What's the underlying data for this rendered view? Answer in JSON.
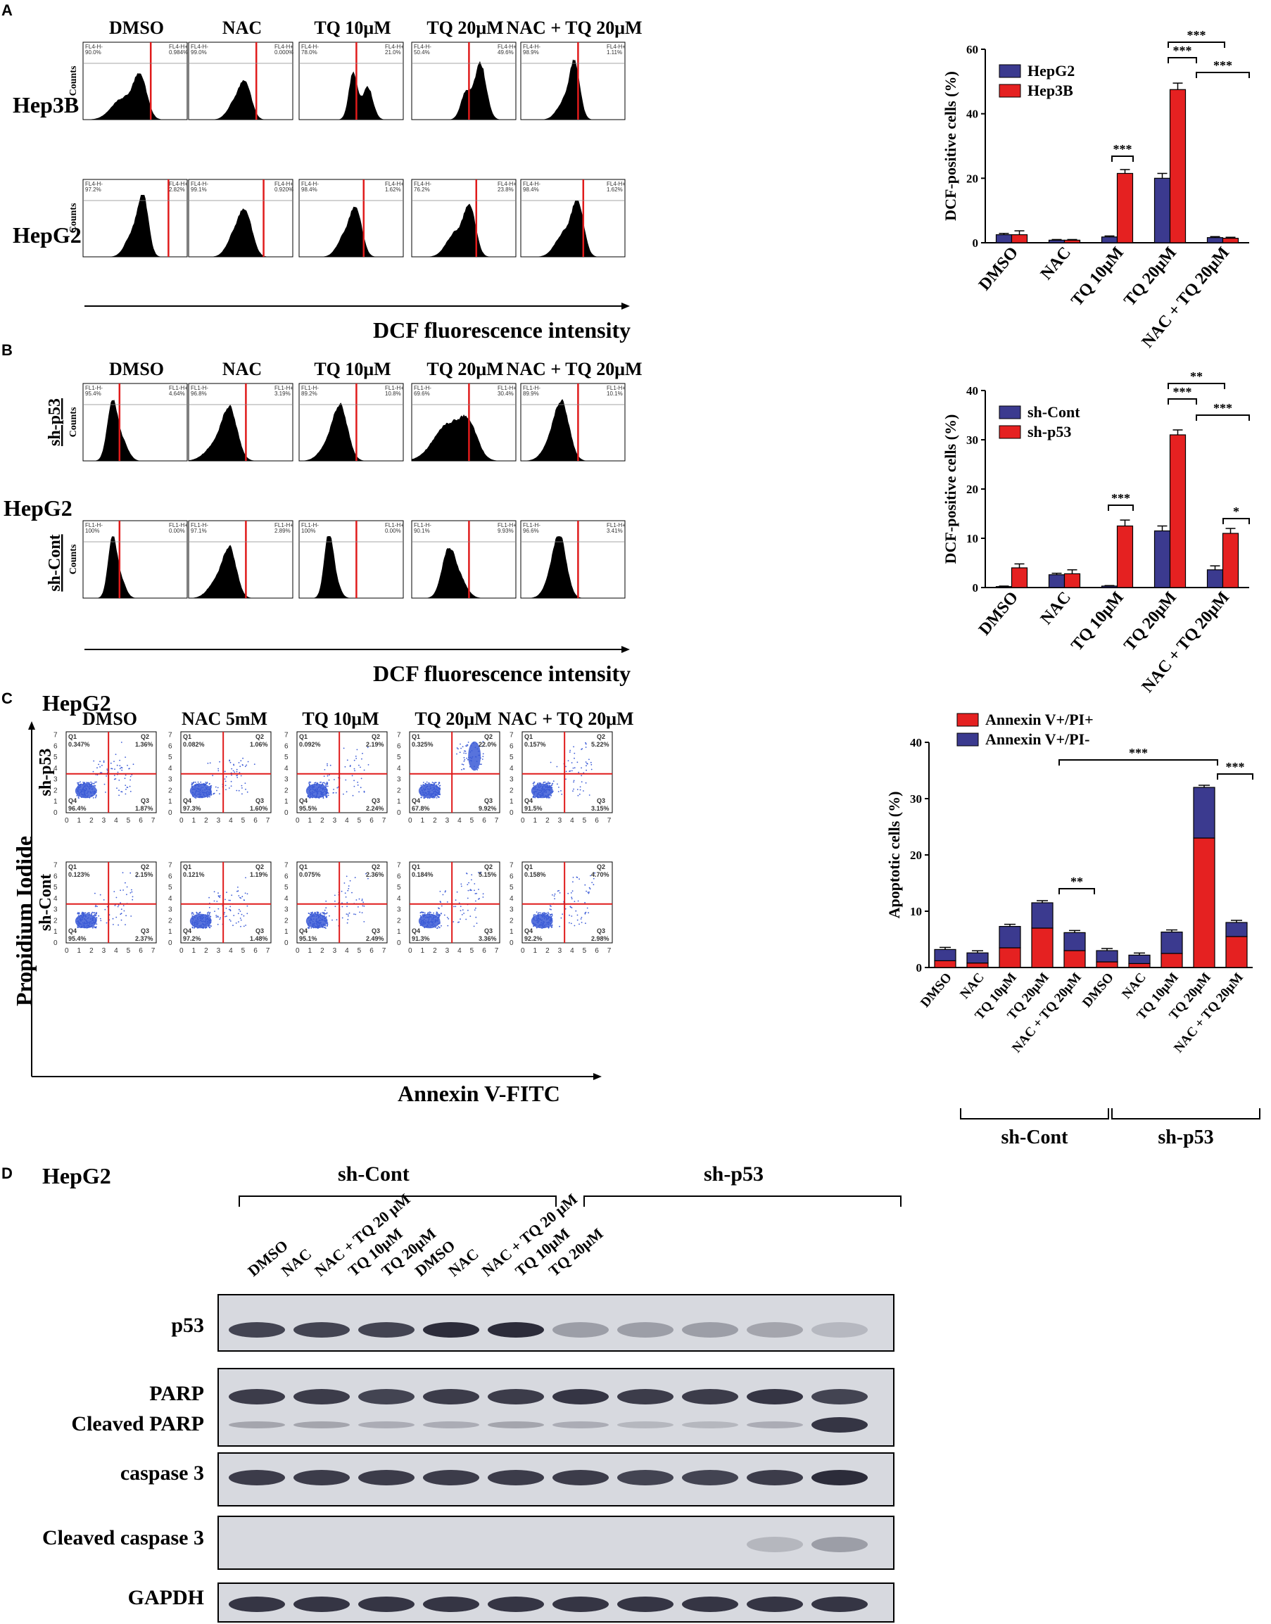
{
  "colors": {
    "red": "#e52121",
    "blue": "#3b3a8f",
    "black": "#000000",
    "gate": "#e01b1b",
    "dots": "#3b5bd6"
  },
  "panels": {
    "A": {
      "letter": "A",
      "columns": [
        "DMSO",
        "NAC",
        "TQ 10μM",
        "TQ 20μM",
        "NAC + TQ 20μM"
      ],
      "rows": [
        "Hep3B",
        "HepG2"
      ],
      "ylabel": "Counts",
      "xlabel": "DCF fluorescence intensity",
      "gates": [
        [
          [
            "90.0%",
            "0.984%"
          ],
          [
            "99.0%",
            "0.000%"
          ],
          [
            "78.0%",
            "21.0%"
          ],
          [
            "50.4%",
            "49.6%"
          ],
          [
            "98.9%",
            "1.11%"
          ]
        ],
        [
          [
            "97.2%",
            "2.82%"
          ],
          [
            "99.1%",
            "0.920%"
          ],
          [
            "98.4%",
            "1.62%"
          ],
          [
            "76.2%",
            "23.8%"
          ],
          [
            "98.4%",
            "1.62%"
          ]
        ]
      ],
      "gate_names": [
        "FL4-H-",
        "FL4-H+"
      ]
    },
    "B": {
      "letter": "B",
      "columns": [
        "DMSO",
        "NAC",
        "TQ 10μM",
        "TQ 20μM",
        "NAC + TQ 20μM"
      ],
      "rows": [
        "sh-p53",
        "sh-Cont"
      ],
      "cell": "HepG2",
      "ylabel": "Counts",
      "xlabel": "DCF fluorescence intensity",
      "gates": [
        [
          [
            "95.4%",
            "4.64%"
          ],
          [
            "96.8%",
            "3.19%"
          ],
          [
            "89.2%",
            "10.8%"
          ],
          [
            "69.6%",
            "30.4%"
          ],
          [
            "89.9%",
            "10.1%"
          ]
        ],
        [
          [
            "100%",
            "0.00%"
          ],
          [
            "97.1%",
            "2.89%"
          ],
          [
            "100%",
            "0.00%"
          ],
          [
            "90.1%",
            "9.93%"
          ],
          [
            "96.6%",
            "3.41%"
          ]
        ]
      ],
      "gate_names": [
        "FL1-H-",
        "FL1-H+"
      ]
    },
    "C": {
      "letter": "C",
      "cell": "HepG2",
      "columns": [
        "DMSO",
        "NAC 5mM",
        "TQ 10μM",
        "TQ 20μM",
        "NAC + TQ 20μM"
      ],
      "rows": [
        "sh-p53",
        "sh-Cont"
      ],
      "ylabel": "Propidium Iodide",
      "xlabel": "Annexin V-FITC",
      "quadrant_names": [
        "Q1",
        "Q2",
        "Q3",
        "Q4"
      ],
      "tick_exps": [
        "0",
        "1",
        "2",
        "3",
        "4",
        "5",
        "6",
        "7"
      ],
      "quadrants": [
        [
          [
            "0.347%",
            "1.36%",
            "1.87%",
            "96.4%"
          ],
          [
            "0.082%",
            "1.06%",
            "1.60%",
            "97.3%"
          ],
          [
            "0.092%",
            "2.19%",
            "2.24%",
            "95.5%"
          ],
          [
            "0.325%",
            "22.0%",
            "9.92%",
            "67.8%"
          ],
          [
            "0.157%",
            "5.22%",
            "3.15%",
            "91.5%"
          ]
        ],
        [
          [
            "0.123%",
            "2.15%",
            "2.37%",
            "95.4%"
          ],
          [
            "0.121%",
            "1.19%",
            "1.48%",
            "97.2%"
          ],
          [
            "0.075%",
            "2.36%",
            "2.49%",
            "95.1%"
          ],
          [
            "0.184%",
            "5.15%",
            "3.36%",
            "91.3%"
          ],
          [
            "0.158%",
            "4.70%",
            "2.98%",
            "92.2%"
          ]
        ]
      ]
    },
    "D": {
      "letter": "D",
      "cell": "HepG2",
      "groups": [
        "sh-Cont",
        "sh-p53"
      ],
      "lanes": [
        "DMSO",
        "NAC",
        "NAC + TQ 20 μM",
        "TQ 10μM",
        "TQ 20μM",
        "DMSO",
        "NAC",
        "NAC + TQ 20 μM",
        "TQ 10μM",
        "TQ 20μM"
      ],
      "blots": [
        "p53",
        "PARP",
        "Cleaved PARP",
        "caspase 3",
        "Cleaved caspase 3",
        "GAPDH"
      ],
      "band_intensity": {
        "p53": [
          0.8,
          0.8,
          0.8,
          0.95,
          0.95,
          0.25,
          0.25,
          0.25,
          0.2,
          0.08
        ],
        "PARP": [
          0.85,
          0.85,
          0.8,
          0.85,
          0.85,
          0.9,
          0.85,
          0.85,
          0.9,
          0.8
        ],
        "Cleaved PARP": [
          0.2,
          0.2,
          0.15,
          0.15,
          0.2,
          0.15,
          0.1,
          0.1,
          0.15,
          0.9
        ],
        "caspase 3": [
          0.85,
          0.85,
          0.85,
          0.85,
          0.85,
          0.85,
          0.8,
          0.8,
          0.85,
          0.95
        ],
        "Cleaved caspase 3": [
          0,
          0,
          0,
          0,
          0,
          0,
          0,
          0,
          0.1,
          0.25
        ],
        "GAPDH": [
          0.9,
          0.9,
          0.9,
          0.9,
          0.9,
          0.9,
          0.9,
          0.9,
          0.9,
          0.9
        ]
      }
    }
  },
  "chart_data": [
    {
      "id": "A-bar",
      "type": "bar",
      "ylabel": "DCF-positive cells (%)",
      "ylim": [
        0,
        60
      ],
      "yticks": [
        "0",
        "20",
        "40",
        "60"
      ],
      "categories": [
        "DMSO",
        "NAC",
        "TQ 10μM",
        "TQ 20μM",
        "NAC + TQ 20μM"
      ],
      "series": [
        {
          "name": "HepG2",
          "color": "#3b3a8f",
          "values": [
            2.5,
            0.8,
            1.8,
            20,
            1.6
          ],
          "errors": [
            0.4,
            0.2,
            0.3,
            1.5,
            0.3
          ]
        },
        {
          "name": "Hep3B",
          "color": "#e52121",
          "values": [
            2.5,
            0.8,
            21.5,
            47.5,
            1.4
          ],
          "errors": [
            1.2,
            0.2,
            1.2,
            2,
            0.3
          ]
        }
      ],
      "significance": [
        {
          "label": "***",
          "from": [
            2,
            1
          ],
          "to": [
            2,
            1
          ]
        },
        {
          "label": "***",
          "from": [
            3,
            0
          ],
          "to": [
            3,
            1
          ]
        },
        {
          "label": "***",
          "from": [
            3,
            1
          ],
          "to": [
            4,
            1
          ]
        },
        {
          "label": "***",
          "from": [
            3,
            1
          ],
          "to": [
            4,
            0
          ]
        }
      ]
    },
    {
      "id": "B-bar",
      "type": "bar",
      "ylabel": "DCF-positive cells (%)",
      "ylim": [
        0,
        40
      ],
      "yticks": [
        "0",
        "10",
        "20",
        "30",
        "40"
      ],
      "categories": [
        "DMSO",
        "NAC",
        "TQ 10μM",
        "TQ 20μM",
        "NAC + TQ 20μM"
      ],
      "series": [
        {
          "name": "sh-Cont",
          "color": "#3b3a8f",
          "values": [
            0.2,
            2.6,
            0.3,
            11.5,
            3.6
          ],
          "errors": [
            0.1,
            0.3,
            0.1,
            1,
            0.8
          ]
        },
        {
          "name": "sh-p53",
          "color": "#e52121",
          "values": [
            4,
            2.8,
            12.5,
            31,
            11
          ],
          "errors": [
            0.8,
            0.8,
            1.2,
            1,
            1
          ]
        }
      ],
      "significance": [
        {
          "label": "***"
        },
        {
          "label": "***"
        },
        {
          "label": "**"
        },
        {
          "label": "***"
        },
        {
          "label": "*"
        }
      ]
    },
    {
      "id": "C-bar",
      "type": "bar",
      "stacked": true,
      "ylabel": "Apoptotic cells (%)",
      "ylim": [
        0,
        40
      ],
      "yticks": [
        "0",
        "10",
        "20",
        "30",
        "40"
      ],
      "categories": [
        "DMSO",
        "NAC",
        "TQ 10μM",
        "TQ 20μM",
        "NAC + TQ 20μM",
        "DMSO",
        "NAC",
        "TQ 10μM",
        "TQ 20μM",
        "NAC + TQ 20μM"
      ],
      "groups": [
        "sh-Cont",
        "sh-p53"
      ],
      "series": [
        {
          "name": "Annexin V+/PI+",
          "color": "#e52121",
          "values": [
            1.2,
            0.8,
            3.5,
            7,
            3,
            1,
            0.7,
            2.5,
            23,
            5.5
          ]
        },
        {
          "name": "Annexin V+/PI-",
          "color": "#3b3a8f",
          "values": [
            2,
            1.8,
            3.8,
            4.5,
            3.2,
            2,
            1.5,
            3.8,
            9,
            2.5
          ]
        }
      ],
      "significance": [
        {
          "label": "***"
        },
        {
          "label": "***"
        },
        {
          "label": "**"
        }
      ]
    }
  ]
}
